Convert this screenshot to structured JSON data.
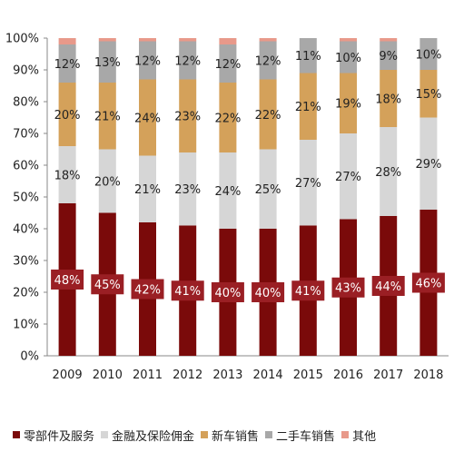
{
  "chart_data": {
    "type": "bar",
    "stacked": true,
    "normalized": true,
    "categories": [
      "2009",
      "2010",
      "2011",
      "2012",
      "2013",
      "2014",
      "2015",
      "2016",
      "2017",
      "2018"
    ],
    "ylim": [
      0,
      100
    ],
    "y_ticks": [
      "0%",
      "10%",
      "20%",
      "30%",
      "40%",
      "50%",
      "60%",
      "70%",
      "80%",
      "90%",
      "100%"
    ],
    "grid": false,
    "legend_position": "bottom",
    "series": [
      {
        "name": "零部件及服务",
        "color": "#7a0a0a",
        "values": [
          48,
          45,
          42,
          41,
          40,
          40,
          41,
          43,
          44,
          46
        ],
        "labels": [
          "48%",
          "45%",
          "42%",
          "41%",
          "40%",
          "40%",
          "41%",
          "43%",
          "44%",
          "46%"
        ]
      },
      {
        "name": "金融及保险佣金",
        "color": "#d6d6d6",
        "values": [
          18,
          20,
          21,
          23,
          24,
          25,
          27,
          27,
          28,
          29
        ],
        "labels": [
          "18%",
          "20%",
          "21%",
          "23%",
          "24%",
          "25%",
          "27%",
          "27%",
          "28%",
          "29%"
        ]
      },
      {
        "name": "新车销售",
        "color": "#d4a15a",
        "values": [
          20,
          21,
          24,
          23,
          22,
          22,
          21,
          19,
          18,
          15
        ],
        "labels": [
          "20%",
          "21%",
          "24%",
          "23%",
          "22%",
          "22%",
          "21%",
          "19%",
          "18%",
          "15%"
        ]
      },
      {
        "name": "二手车销售",
        "color": "#a8a8a8",
        "values": [
          12,
          13,
          12,
          12,
          12,
          12,
          11,
          10,
          9,
          10
        ],
        "labels": [
          "12%",
          "13%",
          "12%",
          "12%",
          "12%",
          "12%",
          "11%",
          "10%",
          "9%",
          "10%"
        ]
      },
      {
        "name": "其他",
        "color": "#e8998a",
        "values": [
          2,
          1,
          1,
          1,
          2,
          1,
          0,
          1,
          1,
          0
        ],
        "labels": []
      }
    ]
  }
}
